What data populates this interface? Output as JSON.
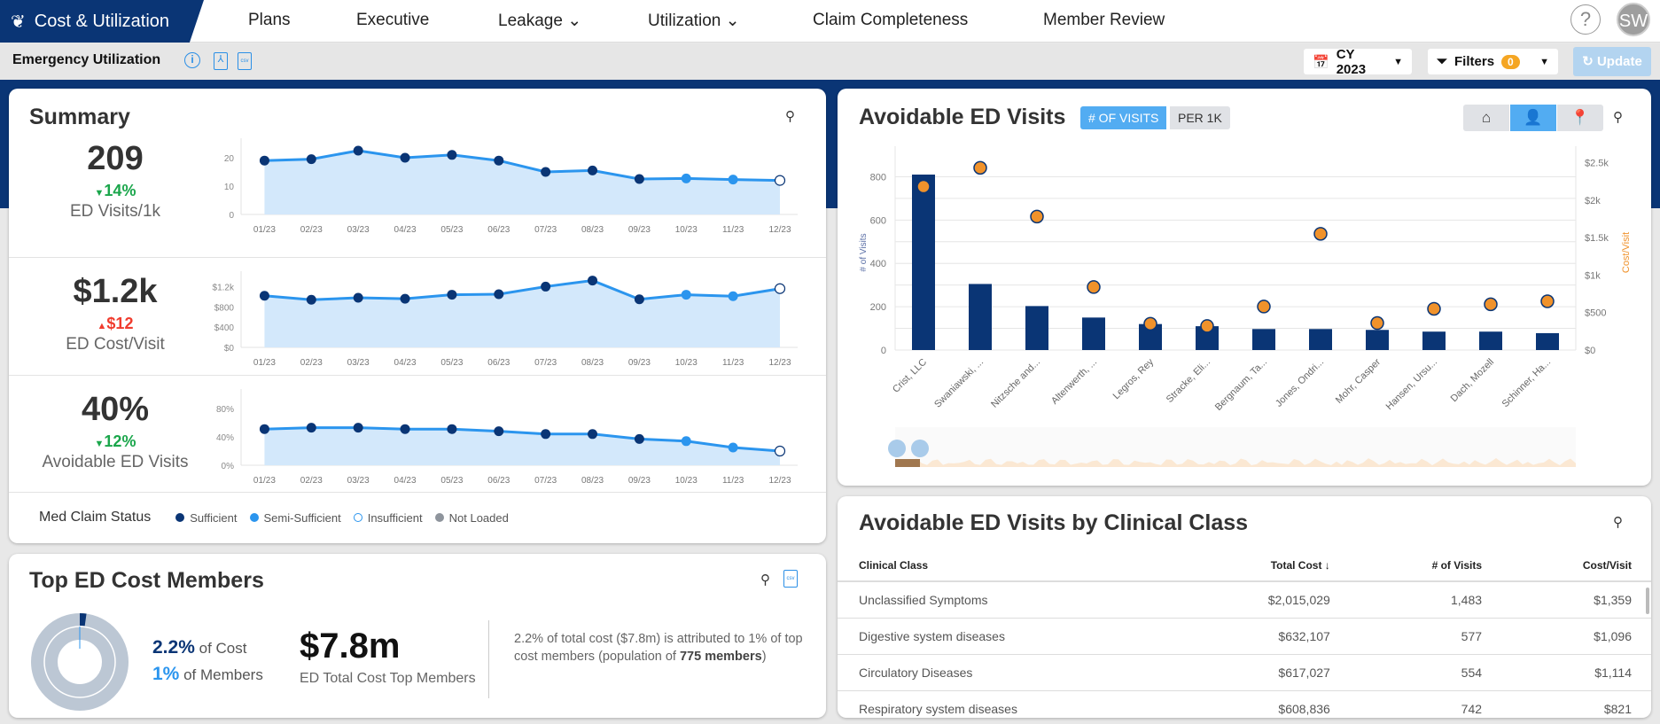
{
  "nav": {
    "brand": "Cost & Utilization",
    "items": [
      "Plans",
      "Executive",
      "Leakage",
      "Utilization",
      "Claim Completeness",
      "Member Review"
    ],
    "help": "?",
    "avatar": "SW"
  },
  "subbar": {
    "title": "Emergency Utilization",
    "period": "CY 2023",
    "filters_label": "Filters",
    "filters_count": "0",
    "update_label": "Update"
  },
  "colors": {
    "navy": "#0a3575",
    "line": "#2b95ee",
    "area": "#d3e8fb",
    "semi": "#2b95ee",
    "orange": "#f0922b",
    "green": "#1aa64b",
    "red": "#f03c2e"
  },
  "summary": {
    "title": "Summary",
    "months": [
      "01/23",
      "02/23",
      "03/23",
      "04/23",
      "05/23",
      "06/23",
      "07/23",
      "08/23",
      "09/23",
      "10/23",
      "11/23",
      "12/23"
    ],
    "status": [
      "sufficient",
      "sufficient",
      "sufficient",
      "sufficient",
      "sufficient",
      "sufficient",
      "sufficient",
      "sufficient",
      "sufficient",
      "semi",
      "semi",
      "insufficient"
    ],
    "kpis": [
      {
        "value": "209",
        "delta": "14%",
        "direction": "down",
        "label": "ED Visits/1k",
        "ticks": [
          "0",
          "10",
          "20"
        ],
        "tickvals": [
          0,
          10,
          20
        ],
        "max": 25,
        "series": [
          19,
          19.5,
          22.5,
          20,
          21,
          19,
          15,
          15.5,
          12.5,
          12.7,
          12.3,
          12
        ]
      },
      {
        "value": "$1.2k",
        "delta": "$12",
        "direction": "up",
        "label": "ED Cost/Visit",
        "ticks": [
          "$0",
          "$400",
          "$800",
          "$1.2k"
        ],
        "tickvals": [
          0,
          400,
          800,
          1200
        ],
        "max": 1400,
        "series": [
          1020,
          940,
          980,
          960,
          1040,
          1050,
          1200,
          1320,
          950,
          1040,
          1010,
          1160
        ]
      },
      {
        "value": "40%",
        "delta": "12%",
        "direction": "down",
        "label": "Avoidable ED Visits",
        "ticks": [
          "0%",
          "40%",
          "80%"
        ],
        "tickvals": [
          0,
          40,
          80
        ],
        "max": 100,
        "series": [
          51,
          53,
          53,
          51,
          51,
          48,
          44,
          44,
          37,
          34,
          25,
          20
        ]
      }
    ],
    "legend": {
      "title": "Med Claim Status",
      "items": [
        "Sufficient",
        "Semi-Sufficient",
        "Insufficient",
        "Not Loaded"
      ]
    }
  },
  "top_members": {
    "title": "Top ED Cost Members",
    "cost_pct": "2.2%",
    "cost_suffix": "of Cost",
    "members_pct": "1%",
    "members_suffix": "of Members",
    "total": "$7.8m",
    "total_label": "ED Total Cost Top Members",
    "note_a": "2.2% of total cost ($7.8m) is attributed to 1% of top cost members (population of ",
    "note_b": "775 members",
    "note_c": ")",
    "share": 2.2
  },
  "avoidable": {
    "title": "Avoidable ED Visits",
    "toggle": [
      "# OF VISITS",
      "PER 1K"
    ],
    "views": [
      "home-icon",
      "person-icon",
      "location-icon"
    ]
  },
  "chart_data": {
    "type": "bar",
    "categories": [
      "Crist, LLC",
      "Swaniawski, ...",
      "Nitzsche and...",
      "Altenwerth, ...",
      "Legros, Rey",
      "Stracke, Eli...",
      "Bergnaum, Ta...",
      "Jones, Ondri...",
      "Mohr, Casper",
      "Hansen, Ursu...",
      "Dach, Mozell",
      "Schinner, Ha..."
    ],
    "series": [
      {
        "name": "# of Visits",
        "type": "bar",
        "axis": "left",
        "values": [
          810,
          305,
          203,
          150,
          120,
          110,
          97,
          97,
          93,
          85,
          85,
          78
        ]
      },
      {
        "name": "Cost/Visit",
        "type": "scatter",
        "axis": "right",
        "values": [
          2180,
          2430,
          1780,
          840,
          350,
          320,
          580,
          1550,
          360,
          550,
          610,
          650
        ]
      }
    ],
    "ylabel": "# of Visits",
    "y2label": "Cost/Visit",
    "ylim": [
      0,
      900
    ],
    "yticks": [
      "0",
      "200",
      "400",
      "600",
      "800"
    ],
    "y2lim": [
      0,
      2600
    ],
    "y2ticks": [
      "$0",
      "$500",
      "$1k",
      "$1.5k",
      "$2k",
      "$2.5k"
    ],
    "grid": true
  },
  "clinical": {
    "title": "Avoidable ED Visits by Clinical Class",
    "columns": [
      "Clinical Class",
      "Total Cost ↓",
      "# of Visits",
      "Cost/Visit"
    ],
    "rows": [
      [
        "Unclassified Symptoms",
        "$2,015,029",
        "1,483",
        "$1,359"
      ],
      [
        "Digestive system diseases",
        "$632,107",
        "577",
        "$1,096"
      ],
      [
        "Circulatory Diseases",
        "$617,027",
        "554",
        "$1,114"
      ],
      [
        "Respiratory system diseases",
        "$608,836",
        "742",
        "$821"
      ]
    ]
  }
}
